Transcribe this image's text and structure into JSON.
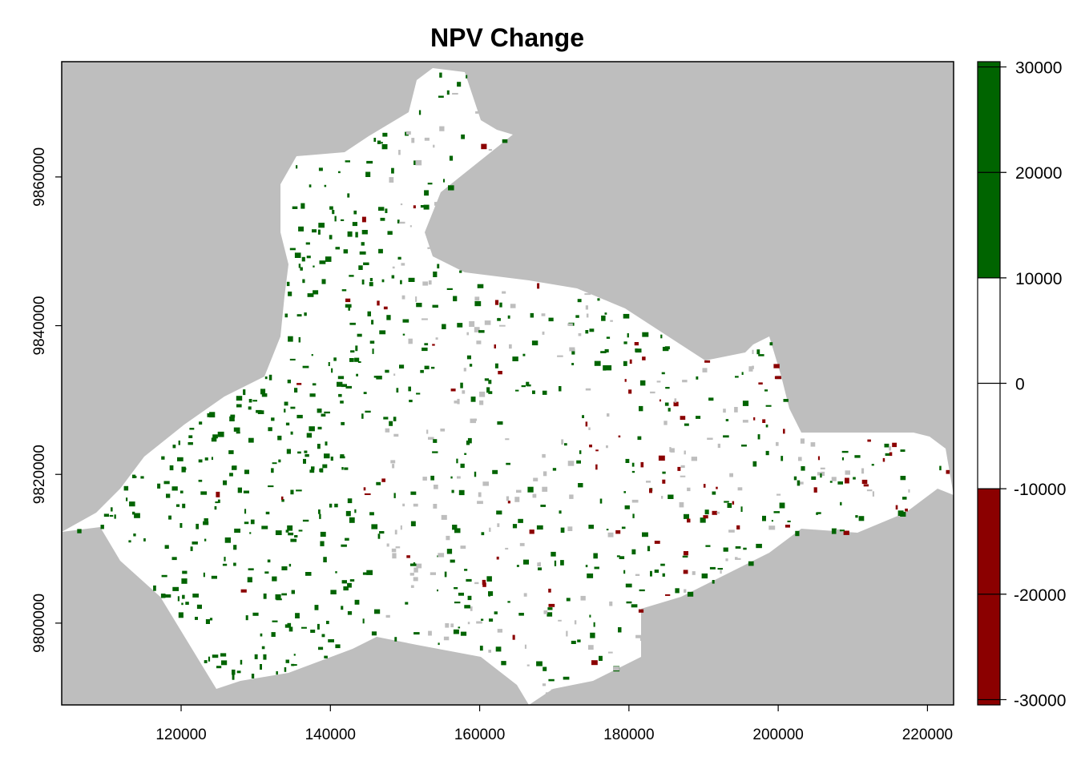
{
  "title": "NPV Change",
  "chart_data": {
    "type": "heatmap",
    "title": "NPV Change",
    "xlabel": "",
    "ylabel": "",
    "xlim": [
      104000,
      223500
    ],
    "ylim": [
      9789000,
      9875500
    ],
    "x_ticks": [
      120000,
      140000,
      160000,
      180000,
      200000,
      220000
    ],
    "x_tick_labels": [
      "120000",
      "140000",
      "160000",
      "180000",
      "200000",
      "220000"
    ],
    "y_ticks": [
      9800000,
      9820000,
      9840000,
      9860000
    ],
    "y_tick_labels": [
      "9800000",
      "9820000",
      "9840000",
      "9860000"
    ],
    "legend": {
      "placement": "right",
      "range": [
        -30500,
        30500
      ],
      "ticks": [
        30000,
        20000,
        10000,
        0,
        -10000,
        -20000,
        -30000
      ],
      "tick_labels": [
        "30000",
        "20000",
        "10000",
        "0",
        "-10000",
        "-20000",
        "-30000"
      ],
      "bins": [
        {
          "from": 10000,
          "to": 30500,
          "color": "#006400"
        },
        {
          "from": -10000,
          "to": 10000,
          "color": "#ffffff"
        },
        {
          "from": -30500,
          "to": -10000,
          "color": "#8b0000"
        }
      ]
    },
    "background_color": "#bebebe",
    "nodata_color": "#bebebe",
    "colors": {
      "positive": "#006400",
      "neutral": "#ffffff",
      "negative": "#8b0000"
    }
  }
}
